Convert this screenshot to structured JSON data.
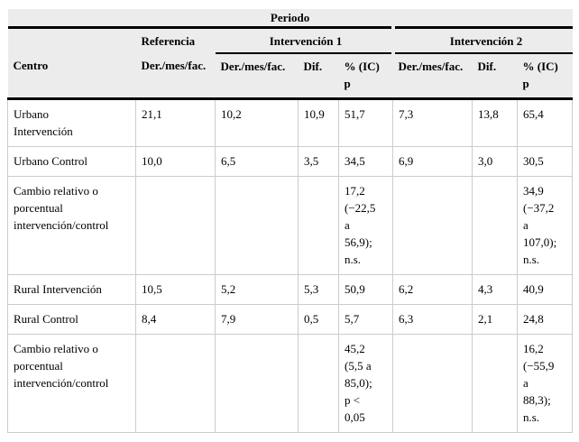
{
  "table": {
    "title": "Periodo",
    "header": {
      "centro_label": "Centro",
      "ref_group": "Referencia",
      "group1": "Intervención 1",
      "group2": "Intervención 2",
      "columns": {
        "ref_rate": "Der./mes/fac.",
        "int1_rate": "Der./mes/fac.",
        "int1_dif": "Dif.",
        "int1_pct": "% (IC)\np",
        "int2_rate": "Der./mes/fac.",
        "int2_dif": "Dif.",
        "int2_pct": "% (IC)\np"
      }
    },
    "rows": [
      {
        "cells": [
          "Urbano\nIntervención",
          "21,1",
          "10,2",
          "10,9",
          "51,7",
          "7,3",
          "13,8",
          "65,4"
        ]
      },
      {
        "cells": [
          "Urbano Control",
          "10,0",
          "6,5",
          "3,5",
          "34,5",
          "6,9",
          "3,0",
          "30,5"
        ]
      },
      {
        "cells": [
          "Cambio relativo o\nporcentual\nintervención/control",
          "",
          "",
          "",
          "17,2\n(−22,5\na\n56,9);\nn.s.",
          "",
          "",
          "34,9\n(−37,2\na\n107,0);\nn.s."
        ]
      },
      {
        "cells": [
          "Rural Intervención",
          "10,5",
          "5,2",
          "5,3",
          "50,9",
          "6,2",
          "4,3",
          "40,9"
        ]
      },
      {
        "cells": [
          "Rural Control",
          "8,4",
          "7,9",
          "0,5",
          "5,7",
          "6,3",
          "2,1",
          "24,8"
        ]
      },
      {
        "cells": [
          "Cambio relativo o\nporcentual\nintervención/control",
          "",
          "",
          "",
          "45,2\n(5,5 a\n85,0);\np <\n0,05",
          "",
          "",
          "16,2\n(−55,9\na\n88,3);\nn.s."
        ]
      }
    ],
    "colors": {
      "header_bg": "#ececec",
      "grid_line": "#cccccc",
      "rule_line": "#000000",
      "body_bg": "#ffffff"
    }
  }
}
